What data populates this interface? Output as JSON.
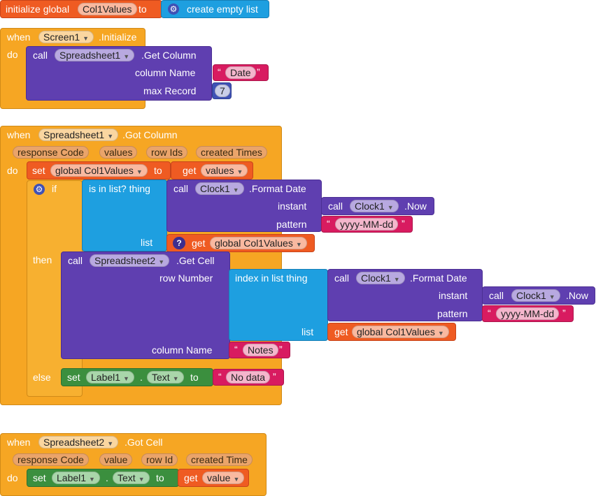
{
  "init_global": {
    "initialize_global": "initialize global",
    "var_name": "Col1Values",
    "to": "to",
    "create_empty_list": "create empty list"
  },
  "screen_init": {
    "when": "when",
    "component": "Screen1",
    "event": ".Initialize",
    "do": "do",
    "call": "call",
    "call_component": "Spreadsheet1",
    "method": ".Get Column",
    "column_name_label": "column Name",
    "column_name_value": "Date",
    "max_record_label": "max Record",
    "max_record_value": "7"
  },
  "got_column": {
    "when": "when",
    "component": "Spreadsheet1",
    "event": ".Got Column",
    "params": [
      "response Code",
      "values",
      "row Ids",
      "created Times"
    ],
    "do": "do",
    "set": "set",
    "set_var": "global Col1Values",
    "to": "to",
    "get": "get",
    "get_var": "values",
    "if": "if",
    "is_in_list": "is in list? thing",
    "call": "call",
    "clock": "Clock1",
    "format_date": ".Format Date",
    "instant": "instant",
    "now": ".Now",
    "pattern": "pattern",
    "pattern_value": "yyyy-MM-dd",
    "list": "list",
    "get_global": "global Col1Values",
    "then": "then",
    "call_ss2": "Spreadsheet2",
    "get_cell": ".Get Cell",
    "row_number": "row Number",
    "index_in_list": "index in list  thing",
    "column_name_label": "column Name",
    "notes": "Notes",
    "else": "else",
    "label": "Label1",
    "dot": ".",
    "text_prop": "Text",
    "no_data": "No data"
  },
  "got_cell": {
    "when": "when",
    "component": "Spreadsheet2",
    "event": ".Got Cell",
    "params": [
      "response Code",
      "value",
      "row Id",
      "created Time"
    ],
    "do": "do",
    "set": "set",
    "label": "Label1",
    "dot": ".",
    "text_prop": "Text",
    "to": "to",
    "get": "get",
    "get_var": "value"
  },
  "colors": {
    "event": "#f6a623",
    "procedure": "#5f3fb0",
    "variable": "#ef5b22",
    "control": "#1e9fe0",
    "text": "#d81b60",
    "component_set": "#3b8f3e",
    "math": "#3f51b5"
  }
}
